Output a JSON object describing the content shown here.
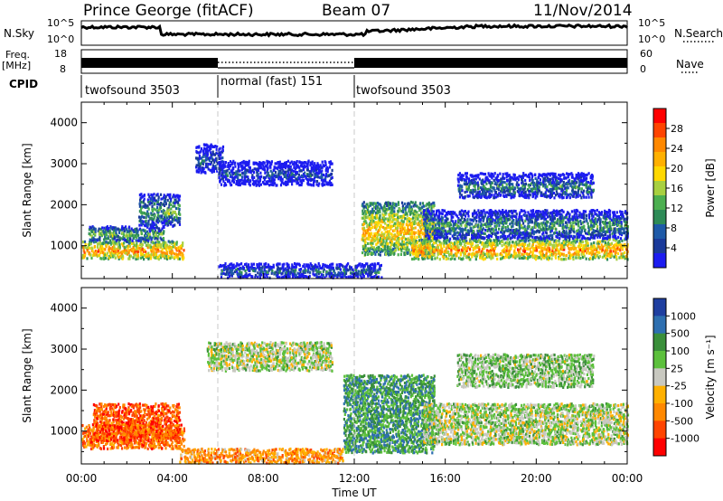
{
  "header": {
    "station": "Prince George (fitACF)",
    "beam": "Beam 07",
    "date": "11/Nov/2014"
  },
  "strip_labels": {
    "nsky": "N.Sky",
    "nsky_ticks": [
      "10^5",
      "10^0"
    ],
    "nsearch": "N.Search",
    "freq_line1": "Freq.",
    "freq_line2": "[MHz]",
    "freq_ticks": [
      "18",
      "8"
    ],
    "nave": "Nave",
    "nave_ticks": [
      "60",
      "0"
    ],
    "cpid": "CPID"
  },
  "cpid_segments": [
    {
      "label": "twofsound 3503",
      "start_h": 0,
      "end_h": 6
    },
    {
      "label": "normal (fast) 151",
      "start_h": 6,
      "end_h": 12
    },
    {
      "label": "twofsound 3503",
      "start_h": 12,
      "end_h": 24
    }
  ],
  "chart_data": [
    {
      "type": "heatmap",
      "name": "power",
      "ylabel": "Slant Range [km]",
      "xlabel": "",
      "x_range_hours": [
        0,
        24
      ],
      "ylim": [
        200,
        4500
      ],
      "yticks": [
        1000,
        2000,
        3000,
        4000
      ],
      "colorbar": {
        "label": "Power [dB]",
        "ticks": [
          "28",
          "24",
          "20",
          "16",
          "12",
          "8",
          "4"
        ],
        "colors": [
          "#ff0000",
          "#ff4400",
          "#ff8800",
          "#ffb000",
          "#ffd800",
          "#a8d040",
          "#4caf50",
          "#2e8b57",
          "#1e5aa8",
          "#1a3a9a",
          "#1c1cf0"
        ]
      },
      "echo_regions": [
        {
          "h0": 0.0,
          "h1": 4.5,
          "r0": 700,
          "r1": 1150,
          "level": 0.8
        },
        {
          "h0": 0.3,
          "h1": 3.6,
          "r0": 1150,
          "r1": 1500,
          "level": 0.45
        },
        {
          "h0": 2.5,
          "h1": 4.3,
          "r0": 1500,
          "r1": 2300,
          "level": 0.4
        },
        {
          "h0": 5.0,
          "h1": 6.2,
          "r0": 2800,
          "r1": 3500,
          "level": 0.2
        },
        {
          "h0": 6.0,
          "h1": 11.0,
          "r0": 2500,
          "r1": 3100,
          "level": 0.15
        },
        {
          "h0": 6.0,
          "h1": 13.2,
          "r0": 250,
          "r1": 600,
          "level": 0.25
        },
        {
          "h0": 12.3,
          "h1": 15.5,
          "r0": 800,
          "r1": 2100,
          "level": 0.7
        },
        {
          "h0": 14.5,
          "h1": 24.0,
          "r0": 700,
          "r1": 1200,
          "level": 0.8
        },
        {
          "h0": 15.0,
          "h1": 24.0,
          "r0": 1200,
          "r1": 1900,
          "level": 0.35
        },
        {
          "h0": 16.5,
          "h1": 22.5,
          "r0": 2200,
          "r1": 2800,
          "level": 0.3
        }
      ]
    },
    {
      "type": "heatmap",
      "name": "velocity",
      "ylabel": "Slant Range [km]",
      "xlabel": "Time UT",
      "x_range_hours": [
        0,
        24
      ],
      "xticks": [
        "00:00",
        "04:00",
        "08:00",
        "12:00",
        "16:00",
        "20:00",
        "00:00"
      ],
      "ylim": [
        200,
        4500
      ],
      "yticks": [
        1000,
        2000,
        3000,
        4000
      ],
      "colorbar": {
        "label": "Velocity [m s⁻¹]",
        "ticks": [
          "1000",
          "500",
          "100",
          "25",
          "-25",
          "-100",
          "-500",
          "-1000"
        ],
        "colors": [
          "#1f3fa0",
          "#2e6fb0",
          "#3a8f3a",
          "#5cc03c",
          "#c8c8c0",
          "#ffb000",
          "#ff8800",
          "#ff4400",
          "#ff0000"
        ]
      },
      "echo_regions": [
        {
          "h0": 0.0,
          "h1": 4.5,
          "r0": 600,
          "r1": 1200,
          "level": 0.2
        },
        {
          "h0": 0.5,
          "h1": 4.3,
          "r0": 800,
          "r1": 1700,
          "level": 0.15
        },
        {
          "h0": 5.5,
          "h1": 11.0,
          "r0": 2500,
          "r1": 3200,
          "level": 0.55
        },
        {
          "h0": 4.3,
          "h1": 11.5,
          "r0": 250,
          "r1": 600,
          "level": 0.3
        },
        {
          "h0": 11.5,
          "h1": 15.5,
          "r0": 500,
          "r1": 2400,
          "level": 0.75
        },
        {
          "h0": 15.0,
          "h1": 24.0,
          "r0": 700,
          "r1": 1700,
          "level": 0.55
        },
        {
          "h0": 16.5,
          "h1": 22.5,
          "r0": 2100,
          "r1": 2900,
          "level": 0.6
        }
      ]
    }
  ]
}
